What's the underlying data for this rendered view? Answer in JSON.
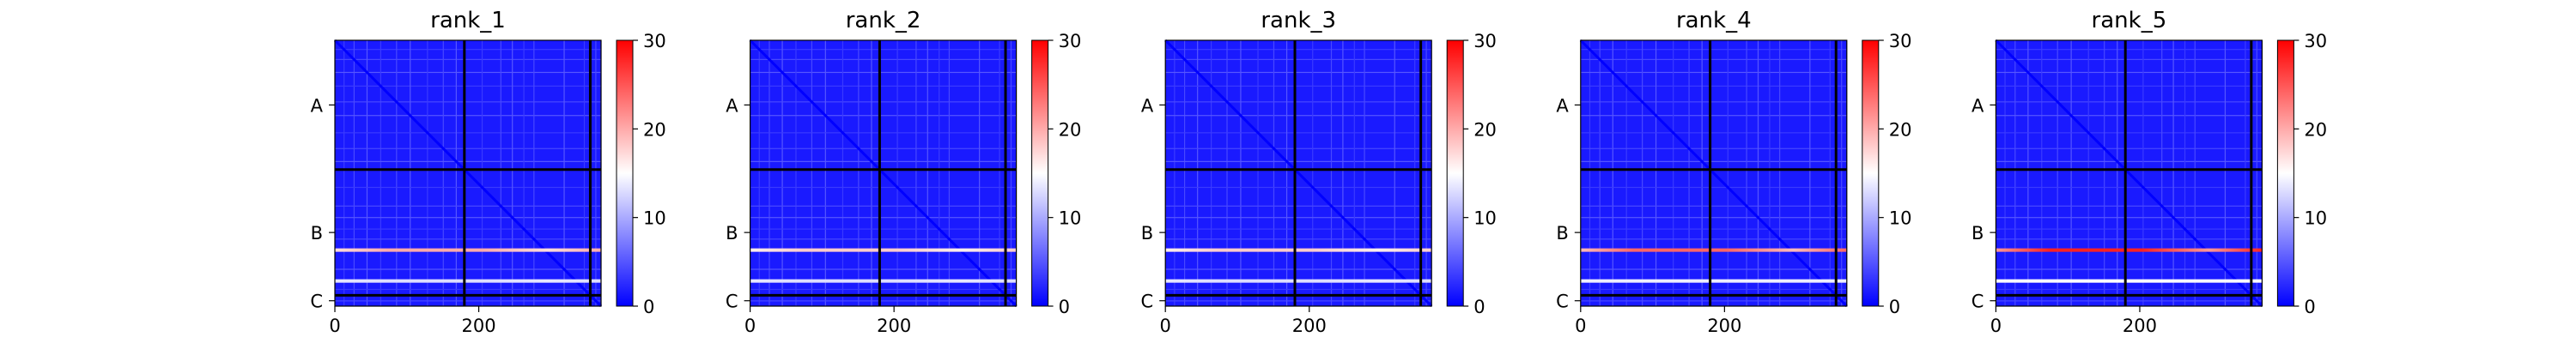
{
  "chart_data": [
    {
      "type": "heatmap",
      "title": "rank_1",
      "x_ticks": [
        0,
        200
      ],
      "y_tick_labels": [
        "A",
        "B",
        "C"
      ],
      "colorbar_ticks": [
        0,
        10,
        20,
        30
      ],
      "colorbar_range": [
        0,
        30
      ],
      "colormap": "bwr",
      "sequence_length": 370,
      "chain_boundaries": [
        180,
        355
      ],
      "bright_rows": [
        {
          "position": 292,
          "value": 20
        },
        {
          "position": 335,
          "value": 13
        }
      ]
    },
    {
      "type": "heatmap",
      "title": "rank_2",
      "x_ticks": [
        0,
        200
      ],
      "y_tick_labels": [
        "A",
        "B",
        "C"
      ],
      "colorbar_ticks": [
        0,
        10,
        20,
        30
      ],
      "colorbar_range": [
        0,
        30
      ],
      "colormap": "bwr",
      "sequence_length": 370,
      "chain_boundaries": [
        180,
        355
      ],
      "bright_rows": [
        {
          "position": 292,
          "value": 18
        },
        {
          "position": 335,
          "value": 13
        }
      ]
    },
    {
      "type": "heatmap",
      "title": "rank_3",
      "x_ticks": [
        0,
        200
      ],
      "y_tick_labels": [
        "A",
        "B",
        "C"
      ],
      "colorbar_ticks": [
        0,
        10,
        20,
        30
      ],
      "colorbar_range": [
        0,
        30
      ],
      "colormap": "bwr",
      "sequence_length": 370,
      "chain_boundaries": [
        180,
        355
      ],
      "bright_rows": [
        {
          "position": 292,
          "value": 18
        },
        {
          "position": 335,
          "value": 13
        }
      ]
    },
    {
      "type": "heatmap",
      "title": "rank_4",
      "x_ticks": [
        0,
        200
      ],
      "y_tick_labels": [
        "A",
        "B",
        "C"
      ],
      "colorbar_ticks": [
        0,
        10,
        20,
        30
      ],
      "colorbar_range": [
        0,
        30
      ],
      "colormap": "bwr",
      "sequence_length": 370,
      "chain_boundaries": [
        180,
        355
      ],
      "bright_rows": [
        {
          "position": 292,
          "value": 24
        },
        {
          "position": 335,
          "value": 14
        }
      ]
    },
    {
      "type": "heatmap",
      "title": "rank_5",
      "x_ticks": [
        0,
        200
      ],
      "y_tick_labels": [
        "A",
        "B",
        "C"
      ],
      "colorbar_ticks": [
        0,
        10,
        20,
        30
      ],
      "colorbar_range": [
        0,
        30
      ],
      "colormap": "bwr",
      "sequence_length": 370,
      "chain_boundaries": [
        180,
        355
      ],
      "bright_rows": [
        {
          "position": 292,
          "value": 28
        },
        {
          "position": 335,
          "value": 15
        }
      ]
    }
  ]
}
